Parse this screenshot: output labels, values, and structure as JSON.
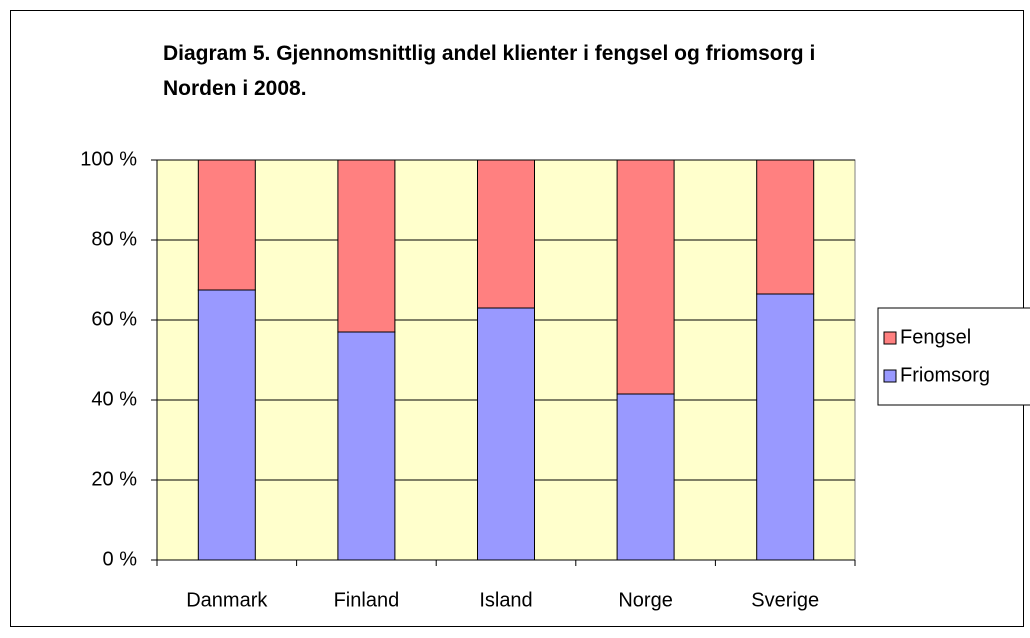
{
  "chart_data": {
    "type": "stacked_bar",
    "title": "Diagram 5. Gjennomsnittlig andel klienter i fengsel og friomsorg i Norden i 2008.",
    "categories": [
      "Danmark",
      "Finland",
      "Island",
      "Norge",
      "Sverige"
    ],
    "series": [
      {
        "name": "Friomsorg",
        "color": "#9999ff",
        "values": [
          67.5,
          57,
          63,
          41.5,
          66.5
        ]
      },
      {
        "name": "Fengsel",
        "color": "#ff8080",
        "values": [
          32.5,
          43,
          37,
          58.5,
          33.5
        ]
      }
    ],
    "ylim": [
      0,
      100
    ],
    "yticks": [
      {
        "value": 0,
        "label": "0 %"
      },
      {
        "value": 20,
        "label": "20 %"
      },
      {
        "value": 40,
        "label": "40 %"
      },
      {
        "value": 60,
        "label": "60 %"
      },
      {
        "value": 80,
        "label": "80 %"
      },
      {
        "value": 100,
        "label": "100 %"
      }
    ],
    "grid": true,
    "legend": "right"
  }
}
